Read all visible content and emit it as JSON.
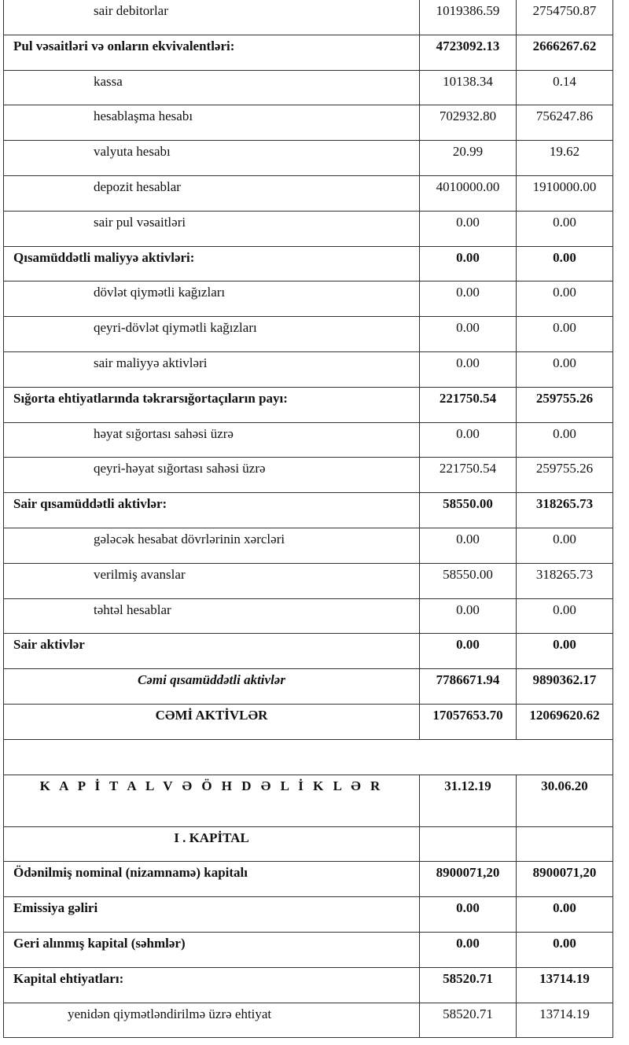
{
  "rows": [
    {
      "kind": "item",
      "label": "sair debitorlar",
      "v1": "1019386.59",
      "v2": "2754750.87"
    },
    {
      "kind": "section",
      "label": "Pul vəsaitləri  və onların ekvivalentləri:",
      "v1": "4723092.13",
      "v2": "2666267.62"
    },
    {
      "kind": "item",
      "label": "kassa",
      "v1": "10138.34",
      "v2": "0.14"
    },
    {
      "kind": "item",
      "label": "hesablaşma hesabı",
      "v1": "702932.80",
      "v2": "756247.86"
    },
    {
      "kind": "item",
      "label": "valyuta hesabı",
      "v1": "20.99",
      "v2": "19.62"
    },
    {
      "kind": "item",
      "label": "depozit hesablar",
      "v1": "4010000.00",
      "v2": "1910000.00"
    },
    {
      "kind": "item",
      "label": "sair pul vəsaitləri",
      "v1": "0.00",
      "v2": "0.00"
    },
    {
      "kind": "section-plain",
      "label": "Qısamüddətli maliyyə aktivləri:",
      "v1": "0.00",
      "v2": "0.00"
    },
    {
      "kind": "item",
      "label": "dövlət qiymətli kağızları",
      "v1": "0.00",
      "v2": "0.00"
    },
    {
      "kind": "item",
      "label": "qeyri-dövlət qiymətli kağızları",
      "v1": "0.00",
      "v2": "0.00"
    },
    {
      "kind": "item",
      "label": "sair maliyyə aktivləri",
      "v1": "0.00",
      "v2": "0.00"
    },
    {
      "kind": "section",
      "label": "Sığorta ehtiyatlarında təkrarsığortaçıların payı:",
      "v1": "221750.54",
      "v2": "259755.26"
    },
    {
      "kind": "item",
      "label": "həyat sığortası sahəsi üzrə",
      "v1": "0.00",
      "v2": "0.00"
    },
    {
      "kind": "item",
      "label": "qeyri-həyat sığortası sahəsi üzrə",
      "v1": "221750.54",
      "v2": "259755.26"
    },
    {
      "kind": "section",
      "label": "Sair qısamüddətli aktivlər:",
      "v1": "58550.00",
      "v2": "318265.73"
    },
    {
      "kind": "item",
      "label": "gələcək hesabat dövrlərinin xərcləri",
      "v1": "0.00",
      "v2": "0.00"
    },
    {
      "kind": "item",
      "label": "verilmiş  avanslar",
      "v1": "58550.00",
      "v2": "318265.73"
    },
    {
      "kind": "item",
      "label": "təhtəl hesablar",
      "v1": "0.00",
      "v2": "0.00"
    },
    {
      "kind": "section",
      "label": "Sair aktivlər",
      "v1": "0.00",
      "v2": "0.00"
    },
    {
      "kind": "subtotal",
      "label": "Cəmi qısamüddətli aktivlər",
      "v1": "7786671.94",
      "v2": "9890362.17"
    },
    {
      "kind": "total",
      "label": "CƏMİ AKTİVLƏR",
      "v1": "17057653.70",
      "v2": "12069620.62"
    },
    {
      "kind": "blank"
    },
    {
      "kind": "header",
      "label": "K A P İ T A L  V Ə    Ö H D Ə L İ K L Ə R",
      "v1": "31.12.19",
      "v2": "30.06.20"
    },
    {
      "kind": "subheader",
      "label": "I . KAPİTAL",
      "v1": "",
      "v2": ""
    },
    {
      "kind": "section",
      "label": "Ödənilmiş nominal (nizamnamə) kapitalı",
      "v1": "8900071,20",
      "v2": "8900071,20"
    },
    {
      "kind": "section-plain",
      "label": "Emissiya gəliri",
      "v1": "0.00",
      "v2": "0.00"
    },
    {
      "kind": "section-plain",
      "label": "Geri alınmış kapital (səhmlər)",
      "v1": "0.00",
      "v2": "0.00"
    },
    {
      "kind": "section",
      "label": "Kapital ehtiyatları:",
      "v1": "58520.71",
      "v2": "13714.19"
    },
    {
      "kind": "item2",
      "label": "yenidən qiymətləndirilmə üzrə ehtiyat",
      "v1": "58520.71",
      "v2": "13714.19"
    }
  ]
}
